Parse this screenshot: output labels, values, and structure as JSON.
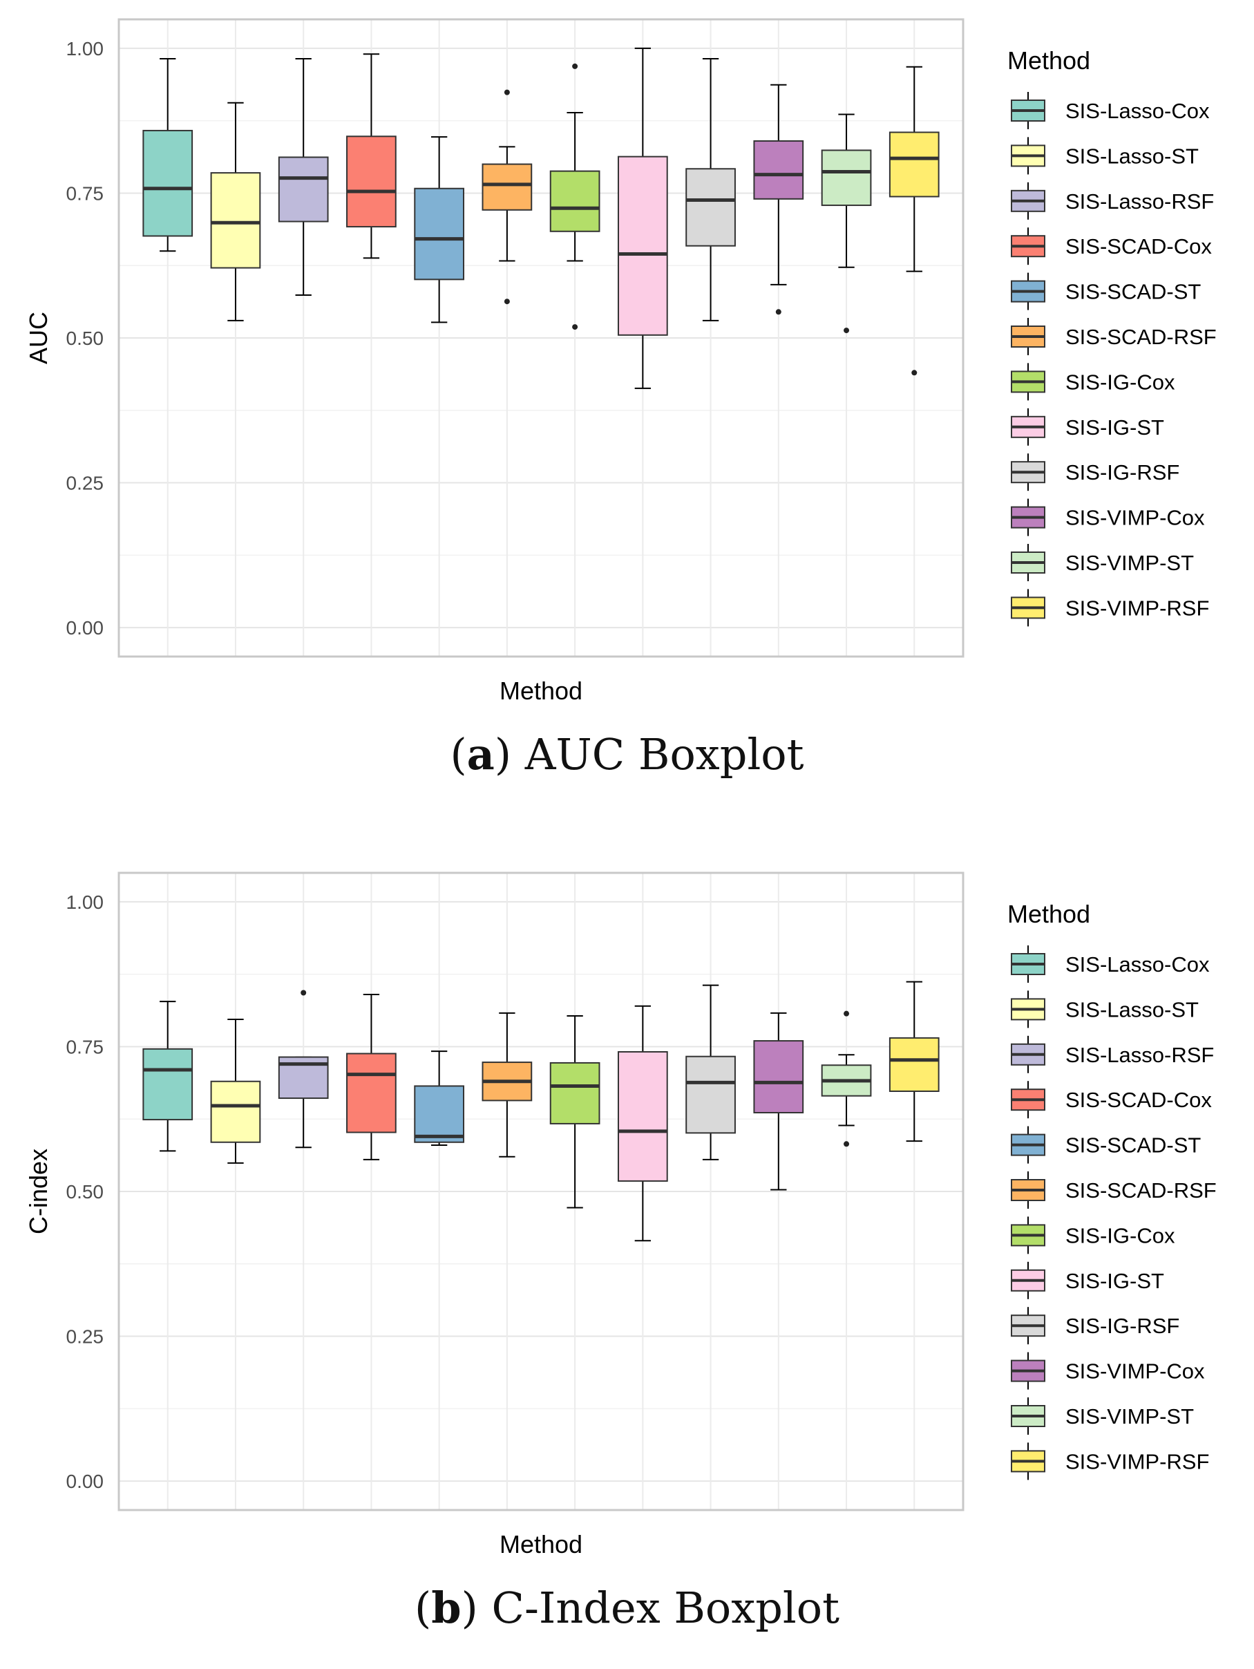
{
  "chart_data": [
    {
      "type": "boxplot",
      "id": "auc",
      "caption_letter": "a",
      "caption_text": "AUC Boxplot",
      "ylabel": "AUC",
      "xlabel": "Method",
      "ylim": [
        -0.05,
        1.05
      ],
      "yticks": [
        "0.00",
        "0.25",
        "0.50",
        "0.75",
        "1.00"
      ],
      "legend_title": "Method",
      "grid": true,
      "legend_position": "right",
      "series": [
        {
          "name": "SIS-Lasso-Cox",
          "color": "#8DD3C7",
          "whisker_low": 0.65,
          "q1": 0.676,
          "median": 0.758,
          "q3": 0.858,
          "whisker_high": 0.982,
          "outliers": []
        },
        {
          "name": "SIS-Lasso-ST",
          "color": "#FFFFB3",
          "whisker_low": 0.53,
          "q1": 0.621,
          "median": 0.699,
          "q3": 0.785,
          "whisker_high": 0.906,
          "outliers": []
        },
        {
          "name": "SIS-Lasso-RSF",
          "color": "#BEBADA",
          "whisker_low": 0.574,
          "q1": 0.701,
          "median": 0.776,
          "q3": 0.812,
          "whisker_high": 0.982,
          "outliers": []
        },
        {
          "name": "SIS-SCAD-Cox",
          "color": "#FB8072",
          "whisker_low": 0.638,
          "q1": 0.692,
          "median": 0.753,
          "q3": 0.848,
          "whisker_high": 0.99,
          "outliers": []
        },
        {
          "name": "SIS-SCAD-ST",
          "color": "#80B1D3",
          "whisker_low": 0.527,
          "q1": 0.601,
          "median": 0.671,
          "q3": 0.758,
          "whisker_high": 0.847,
          "outliers": []
        },
        {
          "name": "SIS-SCAD-RSF",
          "color": "#FDB462",
          "whisker_low": 0.633,
          "q1": 0.721,
          "median": 0.765,
          "q3": 0.8,
          "whisker_high": 0.83,
          "outliers": [
            0.924,
            0.563
          ]
        },
        {
          "name": "SIS-IG-Cox",
          "color": "#B3DE69",
          "whisker_low": 0.633,
          "q1": 0.684,
          "median": 0.724,
          "q3": 0.788,
          "whisker_high": 0.889,
          "outliers": [
            0.969,
            0.519
          ]
        },
        {
          "name": "SIS-IG-ST",
          "color": "#FCCDE5",
          "whisker_low": 0.413,
          "q1": 0.505,
          "median": 0.645,
          "q3": 0.813,
          "whisker_high": 1.0,
          "outliers": []
        },
        {
          "name": "SIS-IG-RSF",
          "color": "#D9D9D9",
          "whisker_low": 0.53,
          "q1": 0.659,
          "median": 0.738,
          "q3": 0.792,
          "whisker_high": 0.982,
          "outliers": []
        },
        {
          "name": "SIS-VIMP-Cox",
          "color": "#BC80BD",
          "whisker_low": 0.592,
          "q1": 0.74,
          "median": 0.782,
          "q3": 0.84,
          "whisker_high": 0.937,
          "outliers": [
            0.545
          ]
        },
        {
          "name": "SIS-VIMP-ST",
          "color": "#CCEBC5",
          "whisker_low": 0.622,
          "q1": 0.729,
          "median": 0.787,
          "q3": 0.824,
          "whisker_high": 0.886,
          "outliers": [
            0.513
          ]
        },
        {
          "name": "SIS-VIMP-RSF",
          "color": "#FFED6F",
          "whisker_low": 0.615,
          "q1": 0.744,
          "median": 0.81,
          "q3": 0.855,
          "whisker_high": 0.968,
          "outliers": [
            0.44
          ]
        }
      ]
    },
    {
      "type": "boxplot",
      "id": "cindex",
      "caption_letter": "b",
      "caption_text": "C-Index Boxplot",
      "ylabel": "C-index",
      "xlabel": "Method",
      "ylim": [
        -0.05,
        1.05
      ],
      "yticks": [
        "0.00",
        "0.25",
        "0.50",
        "0.75",
        "1.00"
      ],
      "legend_title": "Method",
      "grid": true,
      "legend_position": "right",
      "series": [
        {
          "name": "SIS-Lasso-Cox",
          "color": "#8DD3C7",
          "whisker_low": 0.57,
          "q1": 0.624,
          "median": 0.71,
          "q3": 0.746,
          "whisker_high": 0.828,
          "outliers": []
        },
        {
          "name": "SIS-Lasso-ST",
          "color": "#FFFFB3",
          "whisker_low": 0.549,
          "q1": 0.585,
          "median": 0.648,
          "q3": 0.69,
          "whisker_high": 0.797,
          "outliers": []
        },
        {
          "name": "SIS-Lasso-RSF",
          "color": "#BEBADA",
          "whisker_low": 0.576,
          "q1": 0.661,
          "median": 0.72,
          "q3": 0.732,
          "whisker_high": 0.732,
          "outliers": [
            0.843
          ]
        },
        {
          "name": "SIS-SCAD-Cox",
          "color": "#FB8072",
          "whisker_low": 0.555,
          "q1": 0.602,
          "median": 0.702,
          "q3": 0.738,
          "whisker_high": 0.84,
          "outliers": []
        },
        {
          "name": "SIS-SCAD-ST",
          "color": "#80B1D3",
          "whisker_low": 0.58,
          "q1": 0.585,
          "median": 0.595,
          "q3": 0.682,
          "whisker_high": 0.742,
          "outliers": []
        },
        {
          "name": "SIS-SCAD-RSF",
          "color": "#FDB462",
          "whisker_low": 0.56,
          "q1": 0.657,
          "median": 0.69,
          "q3": 0.723,
          "whisker_high": 0.808,
          "outliers": []
        },
        {
          "name": "SIS-IG-Cox",
          "color": "#B3DE69",
          "whisker_low": 0.472,
          "q1": 0.617,
          "median": 0.682,
          "q3": 0.722,
          "whisker_high": 0.803,
          "outliers": []
        },
        {
          "name": "SIS-IG-ST",
          "color": "#FCCDE5",
          "whisker_low": 0.415,
          "q1": 0.518,
          "median": 0.604,
          "q3": 0.741,
          "whisker_high": 0.82,
          "outliers": []
        },
        {
          "name": "SIS-IG-RSF",
          "color": "#D9D9D9",
          "whisker_low": 0.555,
          "q1": 0.601,
          "median": 0.688,
          "q3": 0.733,
          "whisker_high": 0.856,
          "outliers": []
        },
        {
          "name": "SIS-VIMP-Cox",
          "color": "#BC80BD",
          "whisker_low": 0.503,
          "q1": 0.636,
          "median": 0.688,
          "q3": 0.76,
          "whisker_high": 0.808,
          "outliers": []
        },
        {
          "name": "SIS-VIMP-ST",
          "color": "#CCEBC5",
          "whisker_low": 0.614,
          "q1": 0.665,
          "median": 0.691,
          "q3": 0.718,
          "whisker_high": 0.736,
          "outliers": [
            0.807,
            0.582
          ]
        },
        {
          "name": "SIS-VIMP-RSF",
          "color": "#FFED6F",
          "whisker_low": 0.587,
          "q1": 0.673,
          "median": 0.727,
          "q3": 0.765,
          "whisker_high": 0.862,
          "outliers": []
        }
      ]
    }
  ]
}
